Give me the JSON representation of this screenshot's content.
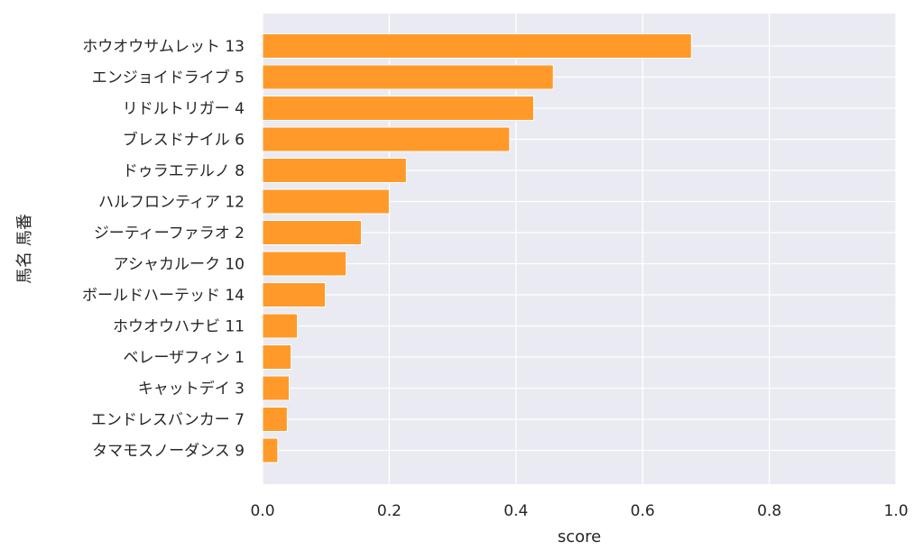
{
  "chart_data": {
    "type": "bar",
    "orientation": "horizontal",
    "categories": [
      "ホウオウサムレット 13",
      "エンジョイドライブ 5",
      "リドルトリガー 4",
      "ブレスドナイル 6",
      "ドゥラエテルノ 8",
      "ハルフロンティア 12",
      "ジーティーファラオ 2",
      "アシャカルーク 10",
      "ボールドハーテッド 14",
      "ホウオウハナビ 11",
      "ベレーザフィン 1",
      "キャットデイ 3",
      "エンドレスバンカー 7",
      "タマモスノーダンス 9"
    ],
    "values": [
      0.677,
      0.459,
      0.428,
      0.39,
      0.227,
      0.2,
      0.156,
      0.132,
      0.099,
      0.055,
      0.045,
      0.042,
      0.039,
      0.024
    ],
    "xlabel": "score",
    "ylabel": "馬名 馬番",
    "xlim": [
      0,
      1.0
    ],
    "xticks": [
      "0.0",
      "0.2",
      "0.4",
      "0.6",
      "0.8",
      "1.0"
    ],
    "grid": true,
    "bar_color": "#ff9a2a",
    "background_color": "#eaeaf2"
  }
}
